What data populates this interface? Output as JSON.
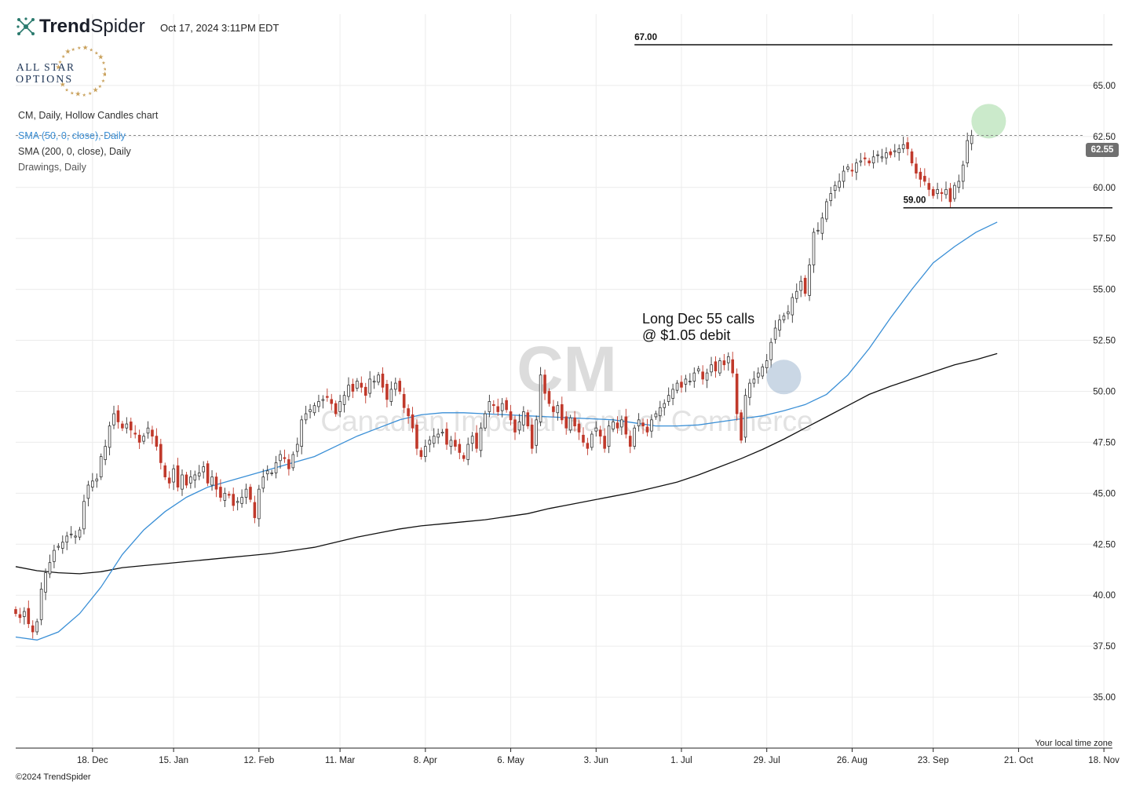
{
  "header": {
    "brand_bold": "Trend",
    "brand_light": "Spider",
    "timestamp": "Oct 17, 2024 3:11PM EDT",
    "sponsor_line1": "ALL STAR",
    "sponsor_line2": "OPTIONS"
  },
  "legend": {
    "chart_desc": "CM, Daily, Hollow Candles chart",
    "sma50": "SMA (50, 0, close), Daily",
    "sma200": "SMA (200, 0, close), Daily",
    "drawings": "Drawings, Daily"
  },
  "footer": {
    "copyright": "©2024 TrendSpider",
    "timezone": "Your local time zone"
  },
  "price_badge": "62.55",
  "colors": {
    "up": "#ffffff",
    "down": "#c0392b",
    "sma50": "#3a8fd6",
    "sma200": "#111111",
    "watermark": "#dcdcdc",
    "entry_marker": "#9fb7cf",
    "target_marker": "#a8dca8"
  },
  "chart_data": {
    "type": "candlestick",
    "watermark_symbol": "CM",
    "watermark_name": "Canadian Imperial Bank of Commerce",
    "ylim": [
      32.5,
      68.5
    ],
    "y_ticks": [
      35,
      37.5,
      40,
      42.5,
      45,
      47.5,
      50,
      52.5,
      55,
      57.5,
      60,
      62.5,
      65
    ],
    "y_tick_labels": [
      "35.00",
      "37.50",
      "40.00",
      "42.50",
      "45.00",
      "47.50",
      "50.00",
      "52.50",
      "55.00",
      "57.50",
      "60.00",
      "62.50",
      "65.00"
    ],
    "x_ticks": [
      {
        "label": "18. Dec",
        "index": 18
      },
      {
        "label": "15. Jan",
        "index": 37
      },
      {
        "label": "12. Feb",
        "index": 57
      },
      {
        "label": "11. Mar",
        "index": 76
      },
      {
        "label": "8. Apr",
        "index": 96
      },
      {
        "label": "6. May",
        "index": 116
      },
      {
        "label": "3. Jun",
        "index": 136
      },
      {
        "label": "1. Jul",
        "index": 156
      },
      {
        "label": "29. Jul",
        "index": 176
      },
      {
        "label": "26. Aug",
        "index": 196
      },
      {
        "label": "23. Sep",
        "index": 215
      },
      {
        "label": "21. Oct",
        "index": 235
      },
      {
        "label": "18. Nov",
        "index": 255
      }
    ],
    "x_range": [
      0,
      257
    ],
    "closes": [
      39.1,
      38.9,
      39.2,
      38.6,
      38.2,
      38.7,
      40.3,
      41.1,
      41.6,
      42.2,
      42.4,
      42.6,
      42.9,
      43.0,
      42.9,
      43.2,
      44.6,
      45.4,
      45.6,
      45.7,
      46.8,
      47.3,
      48.3,
      48.9,
      48.5,
      48.2,
      48.4,
      48.1,
      47.9,
      47.5,
      47.8,
      48.2,
      47.8,
      47.3,
      46.5,
      45.8,
      45.5,
      46.2,
      45.3,
      45.9,
      45.4,
      45.8,
      45.9,
      46.0,
      46.3,
      45.5,
      45.8,
      45.2,
      44.8,
      45.0,
      44.9,
      44.4,
      44.6,
      44.8,
      45.2,
      44.7,
      43.8,
      45.2,
      45.8,
      46.1,
      46.0,
      46.5,
      46.9,
      46.7,
      46.2,
      46.9,
      47.4,
      48.6,
      48.9,
      49.1,
      49.3,
      49.5,
      49.6,
      49.7,
      49.4,
      48.9,
      49.5,
      49.8,
      50.3,
      50.0,
      50.5,
      50.2,
      49.8,
      50.6,
      50.5,
      50.8,
      50.2,
      49.6,
      50.1,
      50.4,
      50.0,
      49.2,
      48.8,
      48.2,
      47.2,
      46.8,
      47.3,
      47.6,
      47.8,
      47.9,
      48.0,
      47.4,
      47.6,
      47.3,
      47.0,
      46.7,
      47.4,
      47.8,
      47.2,
      48.2,
      48.9,
      49.5,
      49.3,
      49.0,
      49.4,
      49.1,
      48.6,
      48.0,
      48.5,
      49.0,
      48.3,
      47.2,
      48.6,
      50.8,
      49.9,
      49.4,
      49.0,
      49.3,
      48.6,
      48.2,
      48.7,
      48.3,
      48.0,
      47.5,
      47.2,
      47.9,
      48.2,
      47.8,
      47.2,
      48.3,
      48.5,
      48.2,
      48.6,
      47.9,
      47.3,
      48.2,
      48.6,
      48.3,
      48.0,
      48.6,
      48.9,
      49.2,
      49.4,
      49.8,
      50.1,
      50.4,
      50.2,
      50.6,
      50.5,
      50.9,
      51.1,
      50.6,
      50.9,
      51.3,
      51.0,
      51.5,
      51.3,
      51.7,
      50.9,
      48.9,
      47.6,
      49.8,
      50.4,
      50.6,
      50.9,
      51.2,
      51.5,
      52.4,
      53.1,
      53.5,
      53.7,
      53.9,
      54.6,
      54.9,
      55.4,
      54.8,
      56.2,
      57.8,
      57.9,
      58.5,
      59.3,
      59.7,
      60.1,
      60.3,
      60.8,
      61.0,
      60.8,
      61.2,
      61.3,
      61.4,
      61.2,
      61.5,
      61.6,
      61.5,
      61.7,
      61.6,
      61.8,
      61.9,
      62.1,
      61.9,
      61.2,
      60.7,
      60.4,
      60.3,
      59.9,
      59.6,
      59.9,
      59.7,
      59.9,
      59.3,
      60.1,
      60.3,
      61.1,
      62.3,
      62.55
    ],
    "sma50": [
      [
        0,
        37.95
      ],
      [
        5,
        37.8
      ],
      [
        10,
        38.2
      ],
      [
        15,
        39.1
      ],
      [
        20,
        40.4
      ],
      [
        25,
        42.0
      ],
      [
        30,
        43.2
      ],
      [
        35,
        44.1
      ],
      [
        40,
        44.8
      ],
      [
        45,
        45.3
      ],
      [
        50,
        45.6
      ],
      [
        55,
        45.9
      ],
      [
        60,
        46.2
      ],
      [
        65,
        46.5
      ],
      [
        70,
        46.8
      ],
      [
        75,
        47.3
      ],
      [
        80,
        47.8
      ],
      [
        85,
        48.2
      ],
      [
        90,
        48.6
      ],
      [
        95,
        48.85
      ],
      [
        100,
        48.95
      ],
      [
        105,
        48.95
      ],
      [
        110,
        48.9
      ],
      [
        115,
        48.85
      ],
      [
        120,
        48.8
      ],
      [
        125,
        48.75
      ],
      [
        130,
        48.7
      ],
      [
        135,
        48.65
      ],
      [
        140,
        48.6
      ],
      [
        145,
        48.45
      ],
      [
        150,
        48.3
      ],
      [
        155,
        48.3
      ],
      [
        160,
        48.35
      ],
      [
        165,
        48.5
      ],
      [
        170,
        48.65
      ],
      [
        175,
        48.8
      ],
      [
        180,
        49.05
      ],
      [
        185,
        49.35
      ],
      [
        190,
        49.85
      ],
      [
        195,
        50.8
      ],
      [
        200,
        52.1
      ],
      [
        205,
        53.6
      ],
      [
        210,
        55.0
      ],
      [
        215,
        56.3
      ],
      [
        220,
        57.1
      ],
      [
        225,
        57.8
      ],
      [
        230,
        58.3
      ]
    ],
    "sma200": [
      [
        0,
        41.4
      ],
      [
        5,
        41.2
      ],
      [
        10,
        41.1
      ],
      [
        15,
        41.05
      ],
      [
        20,
        41.15
      ],
      [
        25,
        41.35
      ],
      [
        30,
        41.45
      ],
      [
        35,
        41.55
      ],
      [
        40,
        41.65
      ],
      [
        45,
        41.75
      ],
      [
        50,
        41.85
      ],
      [
        55,
        41.95
      ],
      [
        60,
        42.05
      ],
      [
        65,
        42.2
      ],
      [
        70,
        42.35
      ],
      [
        75,
        42.6
      ],
      [
        80,
        42.85
      ],
      [
        85,
        43.05
      ],
      [
        90,
        43.25
      ],
      [
        95,
        43.4
      ],
      [
        100,
        43.5
      ],
      [
        105,
        43.6
      ],
      [
        110,
        43.7
      ],
      [
        115,
        43.85
      ],
      [
        120,
        44.0
      ],
      [
        125,
        44.25
      ],
      [
        130,
        44.45
      ],
      [
        135,
        44.65
      ],
      [
        140,
        44.85
      ],
      [
        145,
        45.05
      ],
      [
        150,
        45.3
      ],
      [
        155,
        45.55
      ],
      [
        160,
        45.9
      ],
      [
        165,
        46.3
      ],
      [
        170,
        46.7
      ],
      [
        175,
        47.15
      ],
      [
        180,
        47.65
      ],
      [
        185,
        48.2
      ],
      [
        190,
        48.75
      ],
      [
        195,
        49.3
      ],
      [
        200,
        49.85
      ],
      [
        205,
        50.25
      ],
      [
        210,
        50.6
      ],
      [
        215,
        50.95
      ],
      [
        220,
        51.3
      ],
      [
        225,
        51.55
      ],
      [
        230,
        51.85
      ]
    ],
    "hlines": [
      {
        "value": 67.0,
        "label": "67.00",
        "from_index": 145,
        "to_index": 257
      },
      {
        "value": 59.0,
        "label": "59.00",
        "from_index": 208,
        "to_index": 257
      }
    ],
    "current_price": 62.55,
    "annotation_line1": "Long Dec 55 calls",
    "annotation_line2": "@ $1.05 debit",
    "entry_marker": {
      "index": 180,
      "value": 50.7
    },
    "target_marker": {
      "index": 228,
      "value": 63.25
    }
  }
}
